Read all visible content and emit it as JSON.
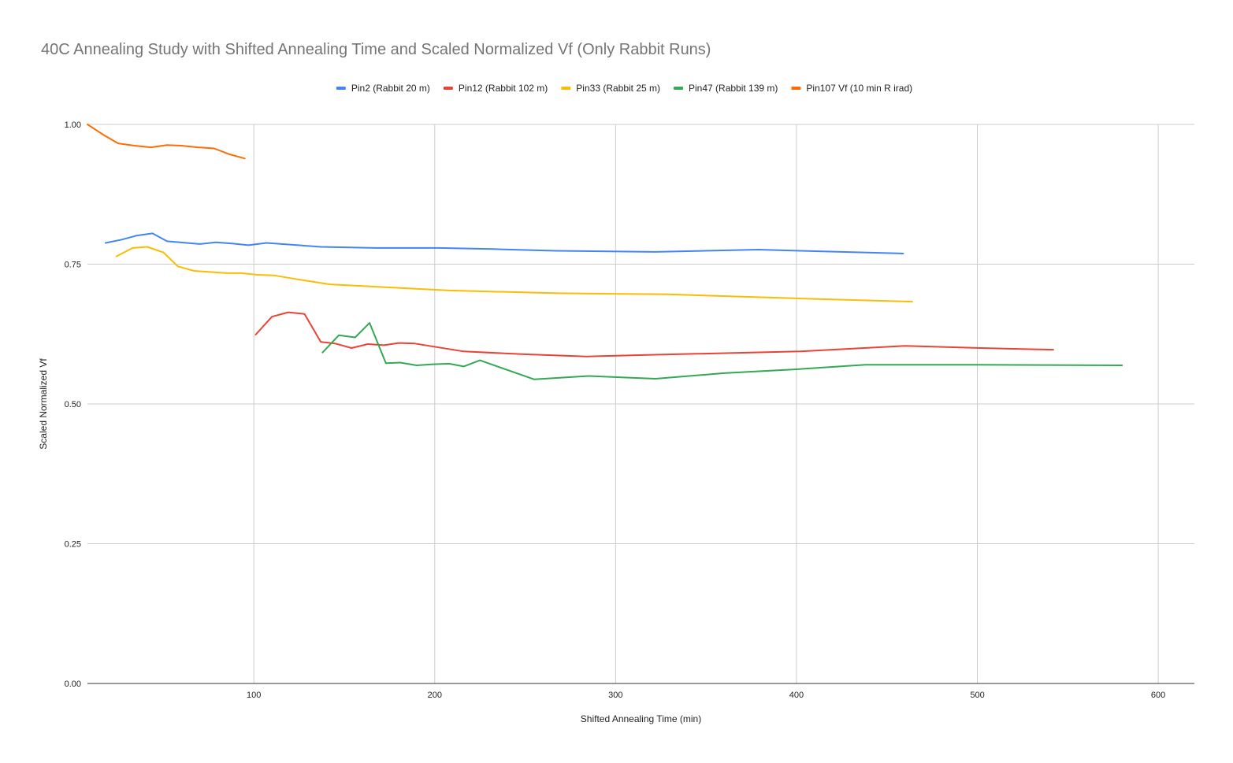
{
  "chart_data": {
    "type": "line",
    "title": "40C Annealing Study with Shifted Annealing Time and Scaled Normalized Vf (Only Rabbit Runs)",
    "xlabel": "Shifted Annealing Time (min)",
    "ylabel": "Scaled Normalized Vf",
    "xlim": [
      8,
      620
    ],
    "ylim": [
      0,
      1
    ],
    "x_ticks": [
      "100",
      "200",
      "300",
      "400",
      "500",
      "600"
    ],
    "x_tick_values": [
      100,
      200,
      300,
      400,
      500,
      600
    ],
    "y_ticks": [
      "0.00",
      "0.25",
      "0.50",
      "0.75",
      "1.00"
    ],
    "y_tick_values": [
      0,
      0.25,
      0.5,
      0.75,
      1.0
    ],
    "grid": true,
    "legend_position": "top",
    "series": [
      {
        "name": "Pin2 (Rabbit 20 m)",
        "color": "#4285f4",
        "points": [
          [
            18,
            0.788
          ],
          [
            27,
            0.794
          ],
          [
            35,
            0.801
          ],
          [
            44,
            0.805
          ],
          [
            52,
            0.791
          ],
          [
            70,
            0.786
          ],
          [
            79,
            0.789
          ],
          [
            88,
            0.787
          ],
          [
            97,
            0.784
          ],
          [
            107,
            0.788
          ],
          [
            137,
            0.781
          ],
          [
            167,
            0.779
          ],
          [
            202,
            0.779
          ],
          [
            232,
            0.777
          ],
          [
            267,
            0.774
          ],
          [
            322,
            0.772
          ],
          [
            379,
            0.776
          ],
          [
            402,
            0.774
          ],
          [
            459,
            0.769
          ]
        ]
      },
      {
        "name": "Pin12 (Rabbit 102 m)",
        "color": "#ea4335",
        "points": [
          [
            101,
            0.624
          ],
          [
            110,
            0.656
          ],
          [
            119,
            0.664
          ],
          [
            128,
            0.661
          ],
          [
            137,
            0.611
          ],
          [
            145,
            0.608
          ],
          [
            154,
            0.6
          ],
          [
            163,
            0.607
          ],
          [
            172,
            0.605
          ],
          [
            180,
            0.609
          ],
          [
            189,
            0.608
          ],
          [
            216,
            0.594
          ],
          [
            248,
            0.589
          ],
          [
            284,
            0.585
          ],
          [
            322,
            0.588
          ],
          [
            402,
            0.594
          ],
          [
            460,
            0.604
          ],
          [
            502,
            0.6
          ],
          [
            542,
            0.597
          ]
        ]
      },
      {
        "name": "Pin33 (Rabbit 25 m)",
        "color": "#fbbc04",
        "points": [
          [
            24,
            0.764
          ],
          [
            33,
            0.779
          ],
          [
            41,
            0.781
          ],
          [
            50,
            0.771
          ],
          [
            58,
            0.746
          ],
          [
            67,
            0.738
          ],
          [
            85,
            0.734
          ],
          [
            93,
            0.734
          ],
          [
            102,
            0.731
          ],
          [
            111,
            0.73
          ],
          [
            124,
            0.723
          ],
          [
            142,
            0.714
          ],
          [
            208,
            0.703
          ],
          [
            268,
            0.698
          ],
          [
            329,
            0.696
          ],
          [
            398,
            0.689
          ],
          [
            464,
            0.683
          ]
        ]
      },
      {
        "name": "Pin47 (Rabbit 139 m)",
        "color": "#34a853",
        "points": [
          [
            138,
            0.592
          ],
          [
            147,
            0.623
          ],
          [
            156,
            0.619
          ],
          [
            164,
            0.645
          ],
          [
            173,
            0.573
          ],
          [
            181,
            0.574
          ],
          [
            190,
            0.569
          ],
          [
            199,
            0.571
          ],
          [
            208,
            0.572
          ],
          [
            216,
            0.567
          ],
          [
            225,
            0.578
          ],
          [
            255,
            0.544
          ],
          [
            285,
            0.55
          ],
          [
            322,
            0.545
          ],
          [
            360,
            0.555
          ],
          [
            400,
            0.562
          ],
          [
            438,
            0.57
          ],
          [
            500,
            0.57
          ],
          [
            580,
            0.569
          ]
        ]
      },
      {
        "name": "Pin107 Vf (10 min R irad)",
        "color": "#ff6d01",
        "points": [
          [
            8,
            1.0
          ],
          [
            17,
            0.981
          ],
          [
            25,
            0.966
          ],
          [
            34,
            0.962
          ],
          [
            43,
            0.959
          ],
          [
            52,
            0.963
          ],
          [
            60,
            0.962
          ],
          [
            69,
            0.959
          ],
          [
            78,
            0.957
          ],
          [
            86,
            0.947
          ],
          [
            95,
            0.939
          ]
        ]
      }
    ]
  }
}
